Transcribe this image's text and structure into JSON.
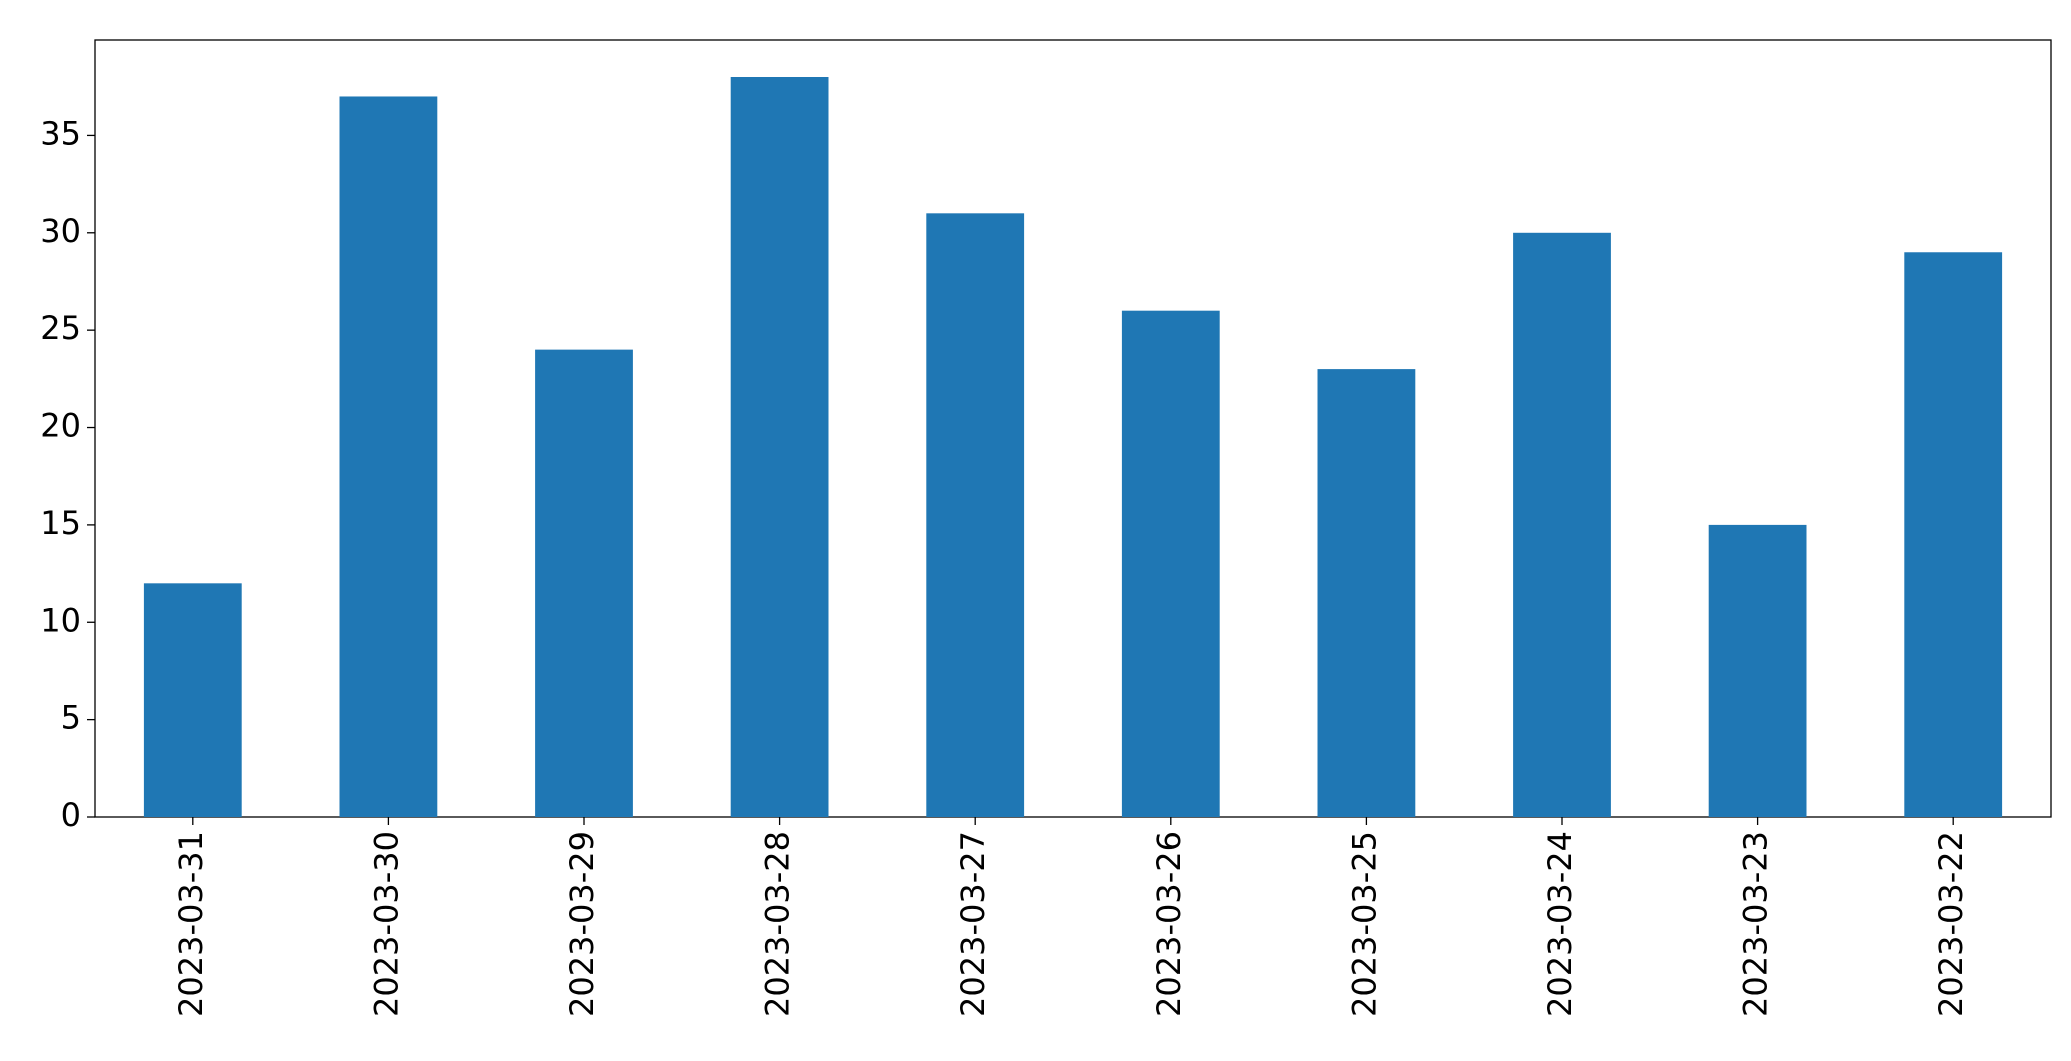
{
  "chart_data": {
    "type": "bar",
    "categories": [
      "2023-03-31",
      "2023-03-30",
      "2023-03-29",
      "2023-03-28",
      "2023-03-27",
      "2023-03-26",
      "2023-03-25",
      "2023-03-24",
      "2023-03-23",
      "2023-03-22"
    ],
    "values": [
      12,
      37,
      24,
      38,
      31,
      26,
      23,
      30,
      15,
      29
    ],
    "color": "#1f77b4",
    "ylim": [
      0,
      39.9
    ],
    "yticks": [
      0,
      5,
      10,
      15,
      20,
      25,
      30,
      35
    ],
    "grid": false
  }
}
